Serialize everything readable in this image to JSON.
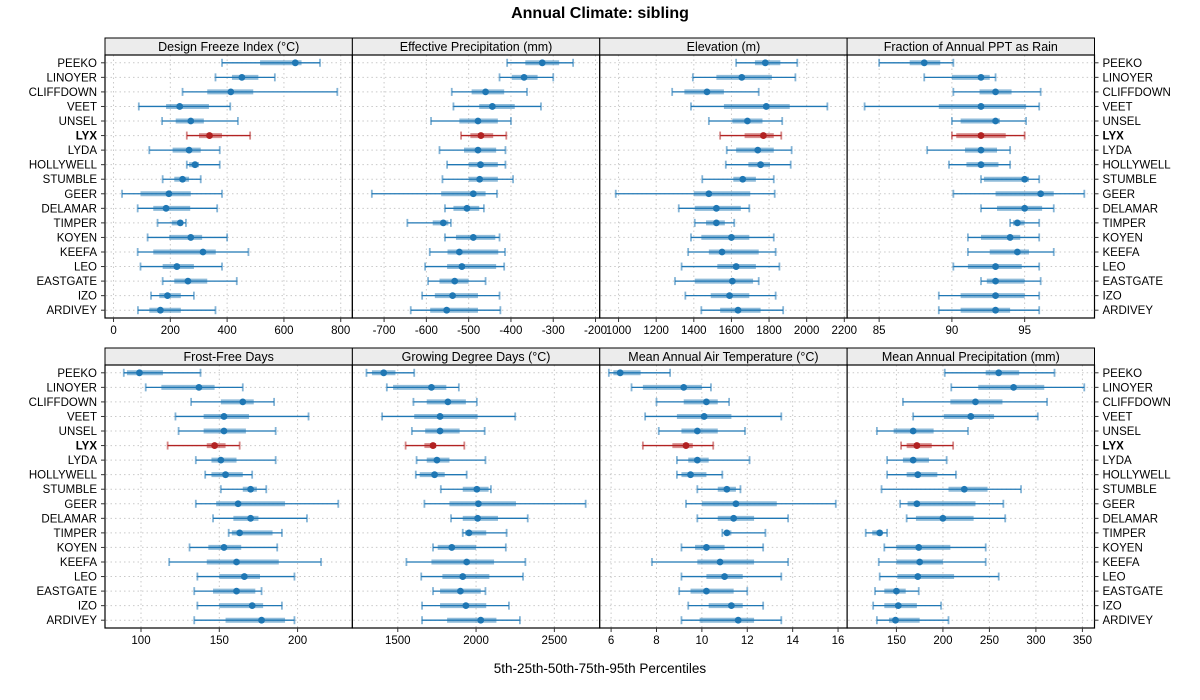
{
  "title": "Annual Climate: sibling",
  "footer": "5th-25th-50th-75th-95th Percentiles",
  "colors": {
    "series": "#1f77b4",
    "highlight": "#b22222",
    "strip_bg": "#ececec",
    "panel_border": "#000000",
    "grid": "#c9c9c9",
    "tick": "#333333",
    "text": "#000000"
  },
  "highlight_site": "LYX",
  "sites": [
    "PEEKO",
    "LINOYER",
    "CLIFFDOWN",
    "VEET",
    "UNSEL",
    "LYX",
    "LYDA",
    "HOLLYWELL",
    "STUMBLE",
    "GEER",
    "DELAMAR",
    "TIMPER",
    "KOYEN",
    "KEEFA",
    "LEO",
    "EASTGATE",
    "IZO",
    "ARDIVEY"
  ],
  "percentiles": [
    "5th",
    "25th",
    "50th",
    "75th",
    "95th"
  ],
  "chart_data": [
    {
      "type": "dotplot-range",
      "grid_row": 0,
      "grid_col": 0,
      "title": "Design Freeze Index (°C)",
      "xlim": [
        -30,
        841
      ],
      "ticks": [
        0,
        200,
        400,
        600,
        800
      ],
      "tick_labels": [
        "0",
        "200",
        "400",
        "600",
        "800"
      ],
      "values": [
        [
          382,
          516,
          640,
          662,
          727
        ],
        [
          359,
          417,
          452,
          510,
          568
        ],
        [
          243,
          330,
          413,
          492,
          788
        ],
        [
          89,
          185,
          233,
          336,
          411
        ],
        [
          171,
          219,
          272,
          318,
          438
        ],
        [
          258,
          301,
          338,
          382,
          481
        ],
        [
          126,
          208,
          266,
          307,
          374
        ],
        [
          258,
          266,
          287,
          301,
          374
        ],
        [
          173,
          214,
          243,
          266,
          307
        ],
        [
          30,
          95,
          195,
          272,
          382
        ],
        [
          85,
          140,
          185,
          270,
          365
        ],
        [
          155,
          205,
          235,
          245,
          255
        ],
        [
          120,
          196,
          272,
          312,
          400
        ],
        [
          85,
          140,
          315,
          360,
          475
        ],
        [
          95,
          173,
          223,
          283,
          382
        ],
        [
          173,
          214,
          262,
          330,
          434
        ],
        [
          132,
          161,
          190,
          237,
          283
        ],
        [
          86,
          126,
          165,
          237,
          359
        ]
      ]
    },
    {
      "type": "dotplot-range",
      "grid_row": 0,
      "grid_col": 1,
      "title": "Effective Precipitation (mm)",
      "xlim": [
        -775,
        -190
      ],
      "ticks": [
        -700,
        -600,
        -500,
        -400,
        -300,
        -200
      ],
      "tick_labels": [
        "-700",
        "-600",
        "-500",
        "-400",
        "-300",
        "-200"
      ],
      "values": [
        [
          -409,
          -366,
          -326,
          -286,
          -253
        ],
        [
          -427,
          -398,
          -369,
          -337,
          -300
        ],
        [
          -540,
          -493,
          -460,
          -416,
          -362
        ],
        [
          -536,
          -475,
          -444,
          -391,
          -329
        ],
        [
          -589,
          -522,
          -478,
          -431,
          -400
        ],
        [
          -518,
          -496,
          -471,
          -442,
          -411
        ],
        [
          -569,
          -511,
          -478,
          -435,
          -413
        ],
        [
          -551,
          -500,
          -472,
          -431,
          -413
        ],
        [
          -562,
          -500,
          -474,
          -431,
          -395
        ],
        [
          -729,
          -565,
          -489,
          -460,
          -433
        ],
        [
          -556,
          -536,
          -504,
          -475,
          -464
        ],
        [
          -645,
          -585,
          -560,
          -548,
          -542
        ],
        [
          -556,
          -530,
          -489,
          -437,
          -427
        ],
        [
          -592,
          -550,
          -522,
          -430,
          -414
        ],
        [
          -603,
          -551,
          -516,
          -435,
          -416
        ],
        [
          -596,
          -569,
          -533,
          -500,
          -460
        ],
        [
          -610,
          -580,
          -538,
          -478,
          -427
        ],
        [
          -637,
          -591,
          -552,
          -478,
          -425
        ]
      ]
    },
    {
      "type": "dotplot-range",
      "grid_row": 0,
      "grid_col": 2,
      "title": "Elevation (m)",
      "xlim": [
        900,
        2215
      ],
      "ticks": [
        1000,
        1200,
        1400,
        1600,
        1800,
        2000,
        2200
      ],
      "tick_labels": [
        "1000",
        "1200",
        "1400",
        "1600",
        "1800",
        "2000",
        "2200"
      ],
      "values": [
        [
          1625,
          1725,
          1780,
          1860,
          1950
        ],
        [
          1395,
          1520,
          1655,
          1815,
          1940
        ],
        [
          1285,
          1350,
          1470,
          1560,
          1745
        ],
        [
          1385,
          1560,
          1785,
          1910,
          2110
        ],
        [
          1480,
          1605,
          1685,
          1765,
          1870
        ],
        [
          1540,
          1670,
          1770,
          1825,
          1865
        ],
        [
          1575,
          1625,
          1740,
          1825,
          1920
        ],
        [
          1570,
          1690,
          1755,
          1805,
          1915
        ],
        [
          1445,
          1610,
          1660,
          1730,
          1825
        ],
        [
          985,
          1400,
          1480,
          1700,
          1830
        ],
        [
          1320,
          1405,
          1520,
          1650,
          1695
        ],
        [
          1405,
          1465,
          1520,
          1565,
          1615
        ],
        [
          1385,
          1440,
          1600,
          1695,
          1825
        ],
        [
          1370,
          1480,
          1550,
          1745,
          1835
        ],
        [
          1335,
          1525,
          1625,
          1730,
          1855
        ],
        [
          1300,
          1405,
          1605,
          1715,
          1745
        ],
        [
          1355,
          1490,
          1590,
          1695,
          1835
        ],
        [
          1440,
          1540,
          1635,
          1755,
          1875
        ]
      ]
    },
    {
      "type": "dotplot-range",
      "grid_row": 0,
      "grid_col": 3,
      "title": "Fraction of Annual PPT as Rain",
      "xlim": [
        82.8,
        99.8
      ],
      "ticks": [
        85,
        90,
        95
      ],
      "tick_labels": [
        "85",
        "90",
        "95"
      ],
      "values": [
        [
          85.0,
          87.1,
          88.1,
          89.2,
          90.1
        ],
        [
          88.1,
          90.0,
          92.0,
          92.6,
          93.0
        ],
        [
          90.1,
          91.9,
          93.0,
          94.1,
          96.1
        ],
        [
          84.0,
          89.1,
          92.0,
          95.1,
          96.0
        ],
        [
          90.0,
          90.6,
          93.0,
          93.3,
          95.1
        ],
        [
          90.0,
          90.3,
          92.0,
          93.7,
          95.0
        ],
        [
          88.3,
          90.9,
          92.0,
          93.1,
          94.0
        ],
        [
          89.8,
          91.0,
          92.0,
          93.2,
          94.0
        ],
        [
          92.0,
          92.2,
          95.0,
          95.3,
          96.0
        ],
        [
          90.1,
          93.0,
          96.1,
          97.0,
          99.1
        ],
        [
          92.0,
          93.1,
          95.0,
          96.2,
          97.0
        ],
        [
          94.0,
          94.2,
          94.5,
          95.0,
          96.0
        ],
        [
          91.1,
          92.0,
          94.0,
          94.7,
          96.0
        ],
        [
          91.1,
          92.6,
          94.5,
          95.3,
          97.0
        ],
        [
          90.1,
          91.1,
          93.0,
          94.8,
          96.0
        ],
        [
          92.0,
          92.4,
          93.0,
          95.0,
          96.1
        ],
        [
          89.1,
          90.6,
          93.0,
          95.0,
          96.0
        ],
        [
          89.1,
          90.6,
          93.0,
          94.0,
          96.0
        ]
      ]
    },
    {
      "type": "dotplot-range",
      "grid_row": 1,
      "grid_col": 0,
      "title": "Frost-Free Days",
      "xlim": [
        77,
        235
      ],
      "ticks": [
        100,
        150,
        200
      ],
      "tick_labels": [
        "100",
        "150",
        "200"
      ],
      "values": [
        [
          89,
          91,
          99,
          114,
          138
        ],
        [
          103,
          113,
          137,
          147,
          165
        ],
        [
          132,
          151,
          165,
          172,
          185
        ],
        [
          122,
          140,
          153,
          169,
          207
        ],
        [
          124,
          140,
          153,
          167,
          186
        ],
        [
          117,
          142,
          147,
          154,
          163
        ],
        [
          135,
          145,
          151,
          161,
          186
        ],
        [
          141,
          145,
          154,
          165,
          171
        ],
        [
          151,
          165,
          170,
          174,
          180
        ],
        [
          135,
          148,
          162,
          192,
          226
        ],
        [
          146,
          159,
          170,
          175,
          206
        ],
        [
          156,
          158,
          163,
          184,
          190
        ],
        [
          131,
          143,
          153,
          164,
          187
        ],
        [
          118,
          142,
          161,
          188,
          215
        ],
        [
          136,
          150,
          166,
          176,
          198
        ],
        [
          134,
          146,
          161,
          173,
          177
        ],
        [
          136,
          150,
          171,
          178,
          190
        ],
        [
          134,
          154,
          177,
          192,
          198
        ]
      ]
    },
    {
      "type": "dotplot-range",
      "grid_row": 1,
      "grid_col": 1,
      "title": "Growing Degree Days (°C)",
      "xlim": [
        1210,
        2790
      ],
      "ticks": [
        1500,
        2000,
        2500
      ],
      "tick_labels": [
        "1500",
        "2000",
        "2500"
      ],
      "values": [
        [
          1300,
          1335,
          1410,
          1485,
          1605
        ],
        [
          1430,
          1470,
          1715,
          1810,
          1890
        ],
        [
          1600,
          1685,
          1820,
          1935,
          2005
        ],
        [
          1400,
          1605,
          1770,
          2010,
          2250
        ],
        [
          1590,
          1675,
          1770,
          1895,
          2055
        ],
        [
          1550,
          1670,
          1725,
          1745,
          1925
        ],
        [
          1620,
          1685,
          1750,
          1830,
          2060
        ],
        [
          1615,
          1640,
          1735,
          1800,
          1940
        ],
        [
          1775,
          1915,
          2005,
          2080,
          2095
        ],
        [
          1670,
          1830,
          2015,
          2255,
          2700
        ],
        [
          1840,
          1915,
          2010,
          2140,
          2330
        ],
        [
          1915,
          1930,
          1955,
          2065,
          2195
        ],
        [
          1725,
          1755,
          1845,
          2000,
          2190
        ],
        [
          1555,
          1715,
          1940,
          2115,
          2315
        ],
        [
          1650,
          1785,
          1915,
          2085,
          2300
        ],
        [
          1725,
          1770,
          1900,
          2030,
          2060
        ],
        [
          1655,
          1770,
          1935,
          2065,
          2210
        ],
        [
          1655,
          1815,
          2030,
          2130,
          2280
        ]
      ]
    },
    {
      "type": "dotplot-range",
      "grid_row": 1,
      "grid_col": 2,
      "title": "Mean Annual Air Temperature (°C)",
      "xlim": [
        5.5,
        16.4
      ],
      "ticks": [
        6,
        8,
        10,
        12,
        14,
        16
      ],
      "tick_labels": [
        "6",
        "8",
        "10",
        "12",
        "14",
        "16"
      ],
      "values": [
        [
          5.9,
          6.1,
          6.4,
          7.3,
          8.6
        ],
        [
          6.9,
          7.4,
          9.2,
          10.0,
          10.4
        ],
        [
          8.0,
          9.2,
          10.2,
          10.7,
          11.2
        ],
        [
          7.5,
          8.9,
          10.1,
          11.3,
          13.5
        ],
        [
          8.1,
          9.1,
          9.8,
          10.7,
          11.9
        ],
        [
          7.4,
          8.7,
          9.3,
          9.6,
          10.5
        ],
        [
          8.9,
          9.4,
          9.8,
          10.3,
          12.1
        ],
        [
          8.9,
          9.1,
          9.5,
          10.2,
          10.9
        ],
        [
          9.8,
          10.7,
          11.1,
          11.5,
          11.7
        ],
        [
          9.3,
          10.0,
          11.5,
          13.3,
          15.9
        ],
        [
          9.8,
          10.7,
          11.4,
          12.3,
          13.8
        ],
        [
          10.9,
          11.0,
          11.1,
          11.3,
          12.8
        ],
        [
          9.1,
          9.7,
          10.2,
          11.0,
          12.7
        ],
        [
          7.8,
          9.8,
          10.8,
          12.3,
          13.8
        ],
        [
          9.1,
          10.2,
          11.0,
          11.8,
          13.5
        ],
        [
          9.0,
          9.5,
          10.2,
          11.4,
          12.0
        ],
        [
          9.4,
          10.3,
          11.3,
          11.8,
          12.7
        ],
        [
          9.1,
          9.9,
          11.6,
          12.3,
          13.5
        ]
      ]
    },
    {
      "type": "dotplot-range",
      "grid_row": 1,
      "grid_col": 3,
      "title": "Mean Annual Precipitation (mm)",
      "xlim": [
        97,
        363
      ],
      "ticks": [
        150,
        200,
        250,
        300,
        350
      ],
      "tick_labels": [
        "150",
        "200",
        "250",
        "300",
        "350"
      ],
      "values": [
        [
          202,
          246,
          260,
          282,
          320
        ],
        [
          209,
          238,
          276,
          309,
          352
        ],
        [
          157,
          208,
          235,
          264,
          312
        ],
        [
          168,
          201,
          230,
          255,
          302
        ],
        [
          129,
          147,
          168,
          190,
          227
        ],
        [
          155,
          161,
          172,
          188,
          211
        ],
        [
          140,
          157,
          168,
          185,
          204
        ],
        [
          140,
          161,
          173,
          194,
          214
        ],
        [
          134,
          206,
          223,
          248,
          284
        ],
        [
          154,
          162,
          172,
          235,
          265
        ],
        [
          161,
          171,
          200,
          233,
          267
        ],
        [
          117,
          124,
          132,
          135,
          140
        ],
        [
          137,
          150,
          174,
          208,
          246
        ],
        [
          131,
          150,
          175,
          200,
          246
        ],
        [
          132,
          151,
          173,
          212,
          260
        ],
        [
          127,
          137,
          150,
          160,
          174
        ],
        [
          125,
          137,
          152,
          172,
          198
        ],
        [
          129,
          142,
          149,
          175,
          206
        ]
      ]
    }
  ]
}
